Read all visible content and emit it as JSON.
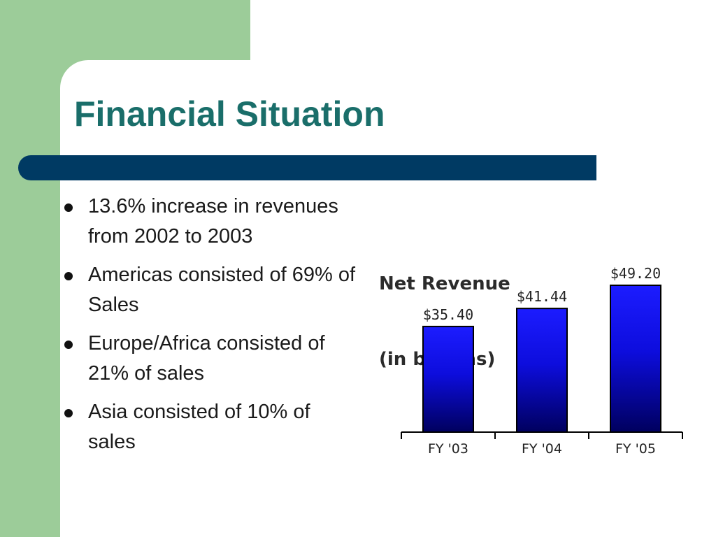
{
  "slide": {
    "title": "Financial Situation",
    "bullets": [
      "13.6% increase in revenues from 2002 to 2003",
      "Americas consisted of 69% of Sales",
      "Europe/Africa consisted of 21% of sales",
      "Asia consisted of 10% of sales"
    ]
  },
  "colors": {
    "sidebar_green": "#9ccc99",
    "title_teal": "#1a6e6a",
    "bar_navy": "#003a63",
    "bar_top_blue": "#1c1cff",
    "bar_bottom_blue": "#00005e"
  },
  "chart_data": {
    "type": "bar",
    "title_lines": [
      "Net Revenue",
      "(in billions)"
    ],
    "categories": [
      "FY '03",
      "FY '04",
      "FY '05"
    ],
    "values": [
      35.4,
      41.44,
      49.2
    ],
    "value_labels": [
      "$35.40",
      "$41.44",
      "$49.20"
    ],
    "xlabel": "",
    "ylabel": "",
    "ylim": [
      0,
      49.2
    ],
    "grid": false
  }
}
